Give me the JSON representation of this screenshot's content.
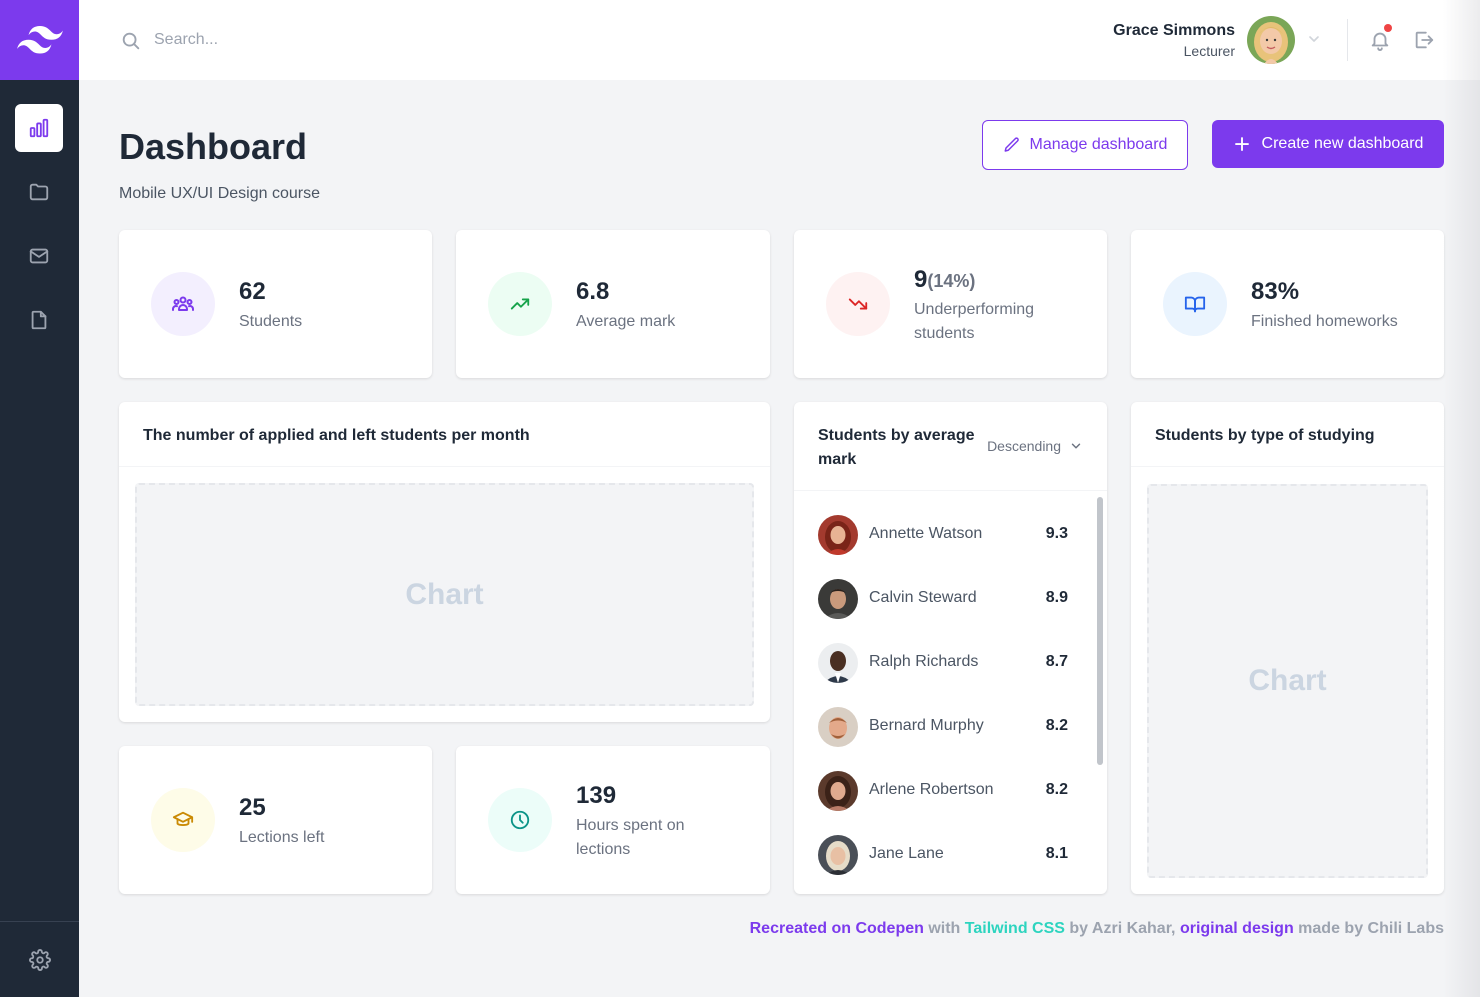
{
  "header": {
    "search_placeholder": "Search...",
    "user_name": "Grace Simmons",
    "user_role": "Lecturer"
  },
  "page": {
    "title": "Dashboard",
    "subtitle": "Mobile UX/UI Design course",
    "manage_label": "Manage dashboard",
    "create_label": "Create new dashboard"
  },
  "stats": {
    "students": {
      "value": "62",
      "label": "Students"
    },
    "average_mark": {
      "value": "6.8",
      "label": "Average mark"
    },
    "underperforming": {
      "value": "9",
      "percent": "(14%)",
      "label": "Underperforming students"
    },
    "homeworks": {
      "value": "83%",
      "label": "Finished homeworks"
    },
    "lections": {
      "value": "25",
      "label": "Lections left"
    },
    "hours": {
      "value": "139",
      "label": "Hours spent on lections"
    }
  },
  "panels": {
    "applied_left": {
      "title": "The number of applied and left students per month",
      "placeholder": "Chart"
    },
    "by_mark": {
      "title": "Students by average mark",
      "sort_label": "Descending"
    },
    "by_type": {
      "title": "Students by type of studying",
      "placeholder": "Chart"
    }
  },
  "students": [
    {
      "name": "Annette Watson",
      "score": "9.3"
    },
    {
      "name": "Calvin Steward",
      "score": "8.9"
    },
    {
      "name": "Ralph Richards",
      "score": "8.7"
    },
    {
      "name": "Bernard Murphy",
      "score": "8.2"
    },
    {
      "name": "Arlene Robertson",
      "score": "8.2"
    },
    {
      "name": "Jane Lane",
      "score": "8.1"
    }
  ],
  "footer": {
    "recreated": "Recreated on Codepen",
    "with": " with ",
    "tailwind": "Tailwind CSS",
    "by": " by Azri Kahar, ",
    "original": "original design",
    "made_by": " made by ",
    "chili": "Chili Labs"
  },
  "colors": {
    "accent": "#7c3aed",
    "sidebar": "#1f2937",
    "background": "#f3f4f6"
  },
  "icons": {
    "logo": "tailwind-logo-icon",
    "nav": [
      "bar-chart-icon",
      "folder-icon",
      "mail-icon",
      "document-icon"
    ],
    "settings": "gear-icon"
  }
}
